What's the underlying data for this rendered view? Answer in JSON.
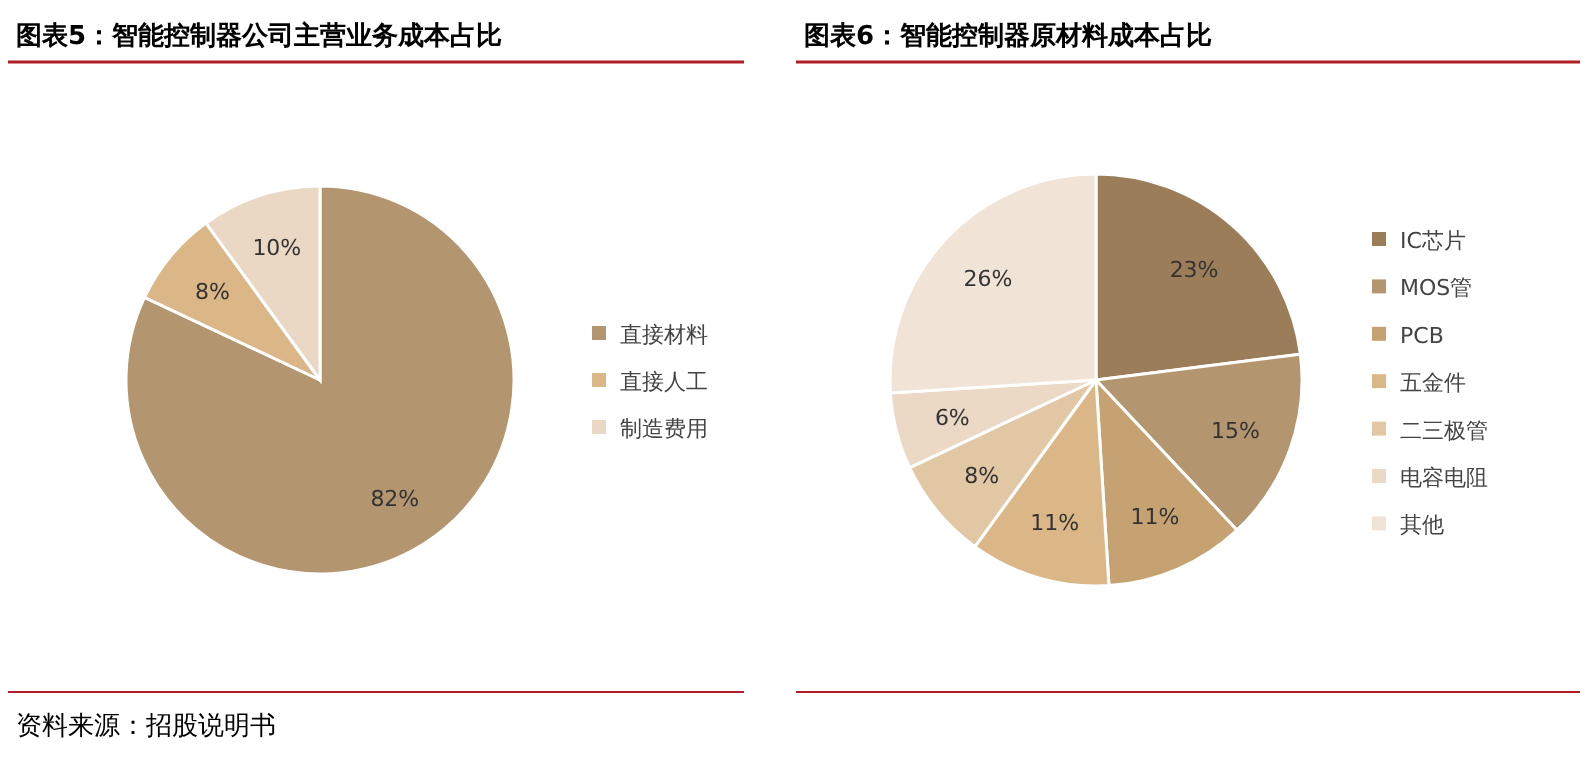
{
  "chart_data": [
    {
      "type": "pie",
      "title": "图表5：智能控制器公司主营业务成本占比",
      "categories": [
        "直接材料",
        "直接人工",
        "制造费用"
      ],
      "values": [
        82,
        8,
        10
      ],
      "colors": [
        "#b39570",
        "#dbb788",
        "#ead8c5"
      ],
      "value_labels": [
        "82%",
        "8%",
        "10%"
      ],
      "legend": "right",
      "annotations": [
        "资料来源：招股说明书"
      ]
    },
    {
      "type": "pie",
      "title": "图表6：智能控制器原材料成本占比",
      "categories": [
        "IC芯片",
        "MOS管",
        "PCB",
        "五金件",
        "二三极管",
        "电容电阻",
        "其他"
      ],
      "values": [
        23,
        15,
        11,
        11,
        8,
        6,
        26
      ],
      "colors": [
        "#9c7d5a",
        "#b39570",
        "#c6a272",
        "#dbb788",
        "#e2c7a4",
        "#ebd8c5",
        "#f1e4d7"
      ],
      "value_labels": [
        "23%",
        "15%",
        "11%",
        "11%",
        "8%",
        "6%",
        "26%"
      ],
      "legend": "right"
    }
  ]
}
